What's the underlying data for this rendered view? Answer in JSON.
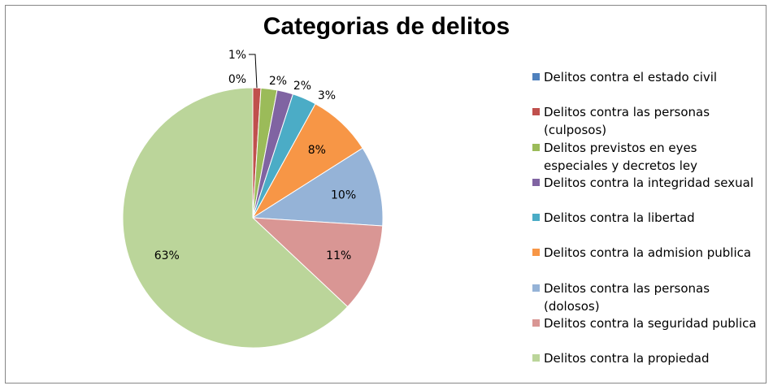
{
  "chart_data": {
    "type": "pie",
    "title": "Categorias de delitos",
    "legend_position": "right",
    "slices": [
      {
        "label": "Delitos contra el estado civil",
        "value": 0,
        "value_label": "0%",
        "color": "#4F81BD"
      },
      {
        "label": "Delitos contra las personas (culposos)",
        "value": 1,
        "value_label": "1%",
        "color": "#C0504D"
      },
      {
        "label": "Delitos previstos en eyes especiales y decretos ley",
        "value": 2,
        "value_label": "2%",
        "color": "#9BBB59"
      },
      {
        "label": "Delitos contra la integridad sexual",
        "value": 2,
        "value_label": "2%",
        "color": "#8064A2"
      },
      {
        "label": "Delitos contra la libertad",
        "value": 3,
        "value_label": "3%",
        "color": "#4BACC6"
      },
      {
        "label": "Delitos contra la admision publica",
        "value": 8,
        "value_label": "8%",
        "color": "#F79646"
      },
      {
        "label": "Delitos contra las personas (dolosos)",
        "value": 10,
        "value_label": "10%",
        "color": "#95B3D7"
      },
      {
        "label": "Delitos contra la seguridad publica",
        "value": 11,
        "value_label": "11%",
        "color": "#D99694"
      },
      {
        "label": "Delitos contra la propiedad",
        "value": 63,
        "value_label": "63%",
        "color": "#BBD59A"
      }
    ]
  }
}
